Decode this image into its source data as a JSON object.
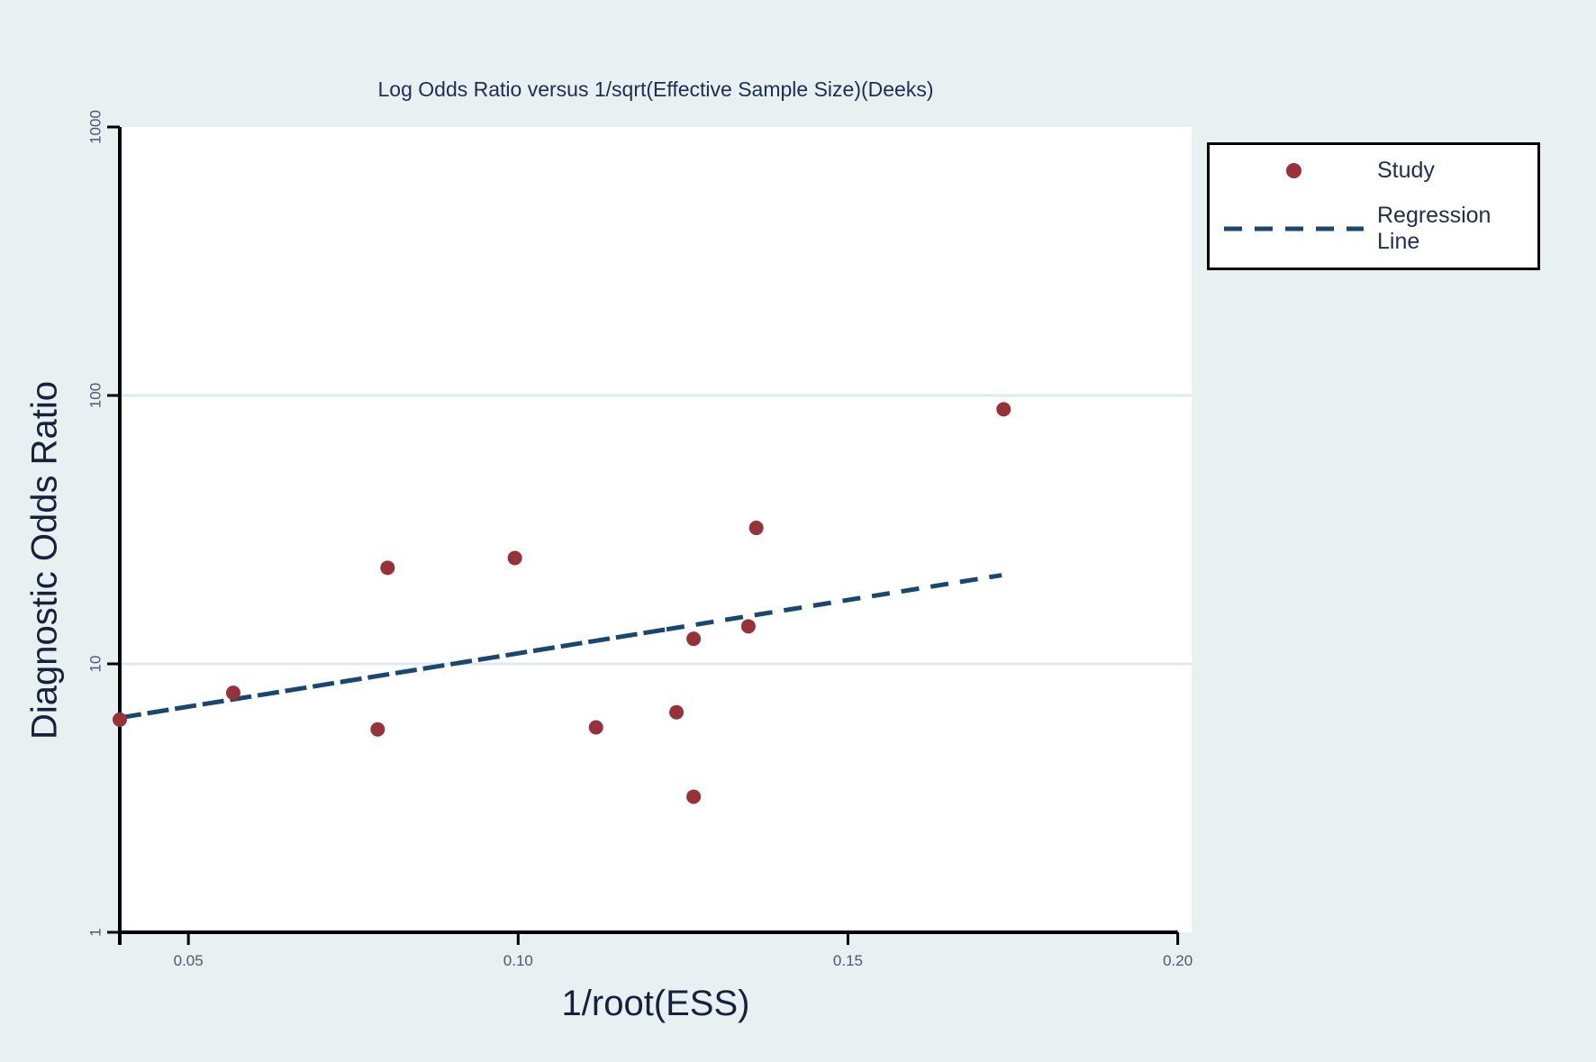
{
  "chart_data": {
    "type": "scatter",
    "title": "Log Odds Ratio versus 1/sqrt(Effective Sample Size)(Deeks)",
    "xlabel": "1/root(ESS)",
    "ylabel": "Diagnostic Odds Ratio",
    "xlim": [
      0.0396,
      0.2021
    ],
    "x_ticks": [
      0.05,
      0.1,
      0.15,
      0.2
    ],
    "x_tick_labels": [
      "0.05",
      "0.10",
      "0.15",
      "0.20"
    ],
    "y_scale": "log10",
    "ylim": [
      1,
      1000
    ],
    "y_ticks": [
      1,
      10,
      100,
      1000
    ],
    "y_tick_labels": [
      "1",
      "10",
      "100",
      "1000"
    ],
    "grid_y_values": [
      10,
      100
    ],
    "grid": "horizontal-only",
    "legend_position": "top-right-outside",
    "series": [
      {
        "name": "Study",
        "type": "scatter",
        "marker": "circle",
        "color": "#97323a",
        "points": [
          {
            "x": 0.0396,
            "y": 6.2
          },
          {
            "x": 0.0568,
            "y": 7.8
          },
          {
            "x": 0.0787,
            "y": 5.7
          },
          {
            "x": 0.0802,
            "y": 22.8
          },
          {
            "x": 0.0995,
            "y": 24.8
          },
          {
            "x": 0.1118,
            "y": 5.8
          },
          {
            "x": 0.124,
            "y": 6.6
          },
          {
            "x": 0.1266,
            "y": 12.4
          },
          {
            "x": 0.1266,
            "y": 3.2
          },
          {
            "x": 0.1349,
            "y": 13.8
          },
          {
            "x": 0.1361,
            "y": 32.1
          },
          {
            "x": 0.1736,
            "y": 88.8
          }
        ]
      },
      {
        "name": "Regression Line",
        "type": "line",
        "style": "dashed",
        "color": "#1a476f",
        "points": [
          {
            "x": 0.0396,
            "y": 6.3
          },
          {
            "x": 0.1733,
            "y": 21.4
          }
        ]
      }
    ]
  },
  "colors": {
    "background": "#e9f0f2",
    "plot_background": "#ffffff",
    "marker": "#97323a",
    "regression_line": "#1a476f",
    "gridline": "#dce9f2",
    "axis": "#000000",
    "title_text": "#1e2d53",
    "tick_text": "#4d576e",
    "axis_title_text": "#16213c"
  }
}
